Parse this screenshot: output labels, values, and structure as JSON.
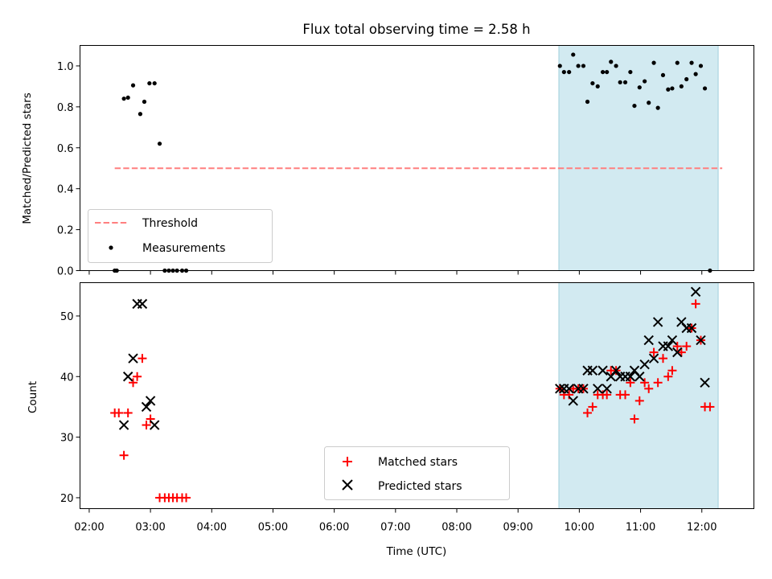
{
  "figure": {
    "title": "Flux total observing time = 2.58 h",
    "xlabel": "Time (UTC)"
  },
  "chart_data": [
    {
      "type": "scatter",
      "title": "Flux total observing time = 2.58 h",
      "xlabel": "",
      "ylabel": "Matched/Predicted stars",
      "xlim": [
        "01:51",
        "12:51"
      ],
      "ylim": [
        0,
        1.1
      ],
      "xticks": [
        "02:00",
        "03:00",
        "04:00",
        "05:00",
        "06:00",
        "07:00",
        "08:00",
        "09:00",
        "10:00",
        "11:00",
        "12:00"
      ],
      "yticks": [
        "0.0",
        "0.2",
        "0.4",
        "0.6",
        "0.8",
        "1.0"
      ],
      "shaded_interval": {
        "start": "09:40",
        "end": "12:16",
        "color": "#add8e6"
      },
      "threshold": {
        "name": "Threshold",
        "value": 0.5,
        "x_start": "02:25",
        "x_end": "12:20",
        "color": "#ff7f7f",
        "style": "dashed"
      },
      "series": [
        {
          "name": "Measurements",
          "marker": "dot",
          "color": "#000000",
          "points": [
            [
              "02:25",
              0.0
            ],
            [
              "02:27",
              0.0
            ],
            [
              "02:34",
              0.84
            ],
            [
              "02:38",
              0.845
            ],
            [
              "02:43",
              0.905
            ],
            [
              "02:50",
              0.765
            ],
            [
              "02:54",
              0.825
            ],
            [
              "02:59",
              0.915
            ],
            [
              "03:04",
              0.915
            ],
            [
              "03:09",
              0.62
            ],
            [
              "03:14",
              0.0
            ],
            [
              "03:18",
              0.0
            ],
            [
              "03:22",
              0.0
            ],
            [
              "03:26",
              0.0
            ],
            [
              "03:31",
              0.0
            ],
            [
              "03:35",
              0.0
            ],
            [
              "09:41",
              1.0
            ],
            [
              "09:45",
              0.97
            ],
            [
              "09:50",
              0.97
            ],
            [
              "09:54",
              1.055
            ],
            [
              "09:59",
              1.0
            ],
            [
              "10:04",
              1.0
            ],
            [
              "10:08",
              0.825
            ],
            [
              "10:13",
              0.915
            ],
            [
              "10:18",
              0.9
            ],
            [
              "10:23",
              0.97
            ],
            [
              "10:27",
              0.97
            ],
            [
              "10:31",
              1.02
            ],
            [
              "10:36",
              1.0
            ],
            [
              "10:40",
              0.92
            ],
            [
              "10:45",
              0.92
            ],
            [
              "10:50",
              0.97
            ],
            [
              "10:54",
              0.805
            ],
            [
              "10:59",
              0.895
            ],
            [
              "11:04",
              0.925
            ],
            [
              "11:08",
              0.82
            ],
            [
              "11:13",
              1.015
            ],
            [
              "11:17",
              0.795
            ],
            [
              "11:22",
              0.955
            ],
            [
              "11:27",
              0.885
            ],
            [
              "11:31",
              0.89
            ],
            [
              "11:36",
              1.015
            ],
            [
              "11:40",
              0.9
            ],
            [
              "11:45",
              0.935
            ],
            [
              "11:50",
              1.015
            ],
            [
              "11:54",
              0.96
            ],
            [
              "11:59",
              1.0
            ],
            [
              "12:03",
              0.89
            ],
            [
              "12:08",
              0.0
            ]
          ]
        }
      ],
      "legend": {
        "position": "lower-left",
        "entries": [
          "Threshold",
          "Measurements"
        ]
      }
    },
    {
      "type": "scatter",
      "title": "",
      "xlabel": "Time (UTC)",
      "ylabel": "Count",
      "xlim": [
        "01:51",
        "12:51"
      ],
      "ylim": [
        18.2,
        55.5
      ],
      "xticks": [
        "02:00",
        "03:00",
        "04:00",
        "05:00",
        "06:00",
        "07:00",
        "08:00",
        "09:00",
        "10:00",
        "11:00",
        "12:00"
      ],
      "yticks": [
        "20",
        "30",
        "40",
        "50"
      ],
      "shaded_interval": {
        "start": "09:40",
        "end": "12:16",
        "color": "#add8e6"
      },
      "series": [
        {
          "name": "Matched stars",
          "marker": "plus",
          "color": "#ff0000",
          "points": [
            [
              "02:25",
              34
            ],
            [
              "02:29",
              34
            ],
            [
              "02:34",
              27
            ],
            [
              "02:38",
              34
            ],
            [
              "02:43",
              39
            ],
            [
              "02:47",
              40
            ],
            [
              "02:52",
              43
            ],
            [
              "02:56",
              32
            ],
            [
              "03:00",
              33
            ],
            [
              "03:09",
              20
            ],
            [
              "03:14",
              20
            ],
            [
              "03:18",
              20
            ],
            [
              "03:22",
              20
            ],
            [
              "03:26",
              20
            ],
            [
              "03:31",
              20
            ],
            [
              "03:35",
              20
            ],
            [
              "09:41",
              38
            ],
            [
              "09:45",
              37
            ],
            [
              "09:50",
              37
            ],
            [
              "09:54",
              38
            ],
            [
              "09:59",
              38
            ],
            [
              "10:04",
              38
            ],
            [
              "10:08",
              34
            ],
            [
              "10:13",
              35
            ],
            [
              "10:18",
              37
            ],
            [
              "10:23",
              37
            ],
            [
              "10:27",
              37
            ],
            [
              "10:31",
              41
            ],
            [
              "10:36",
              41
            ],
            [
              "10:40",
              37
            ],
            [
              "10:45",
              37
            ],
            [
              "10:50",
              39
            ],
            [
              "10:54",
              33
            ],
            [
              "10:59",
              36
            ],
            [
              "11:04",
              39
            ],
            [
              "11:08",
              38
            ],
            [
              "11:13",
              44
            ],
            [
              "11:17",
              39
            ],
            [
              "11:22",
              43
            ],
            [
              "11:27",
              40
            ],
            [
              "11:31",
              41
            ],
            [
              "11:36",
              45
            ],
            [
              "11:40",
              44
            ],
            [
              "11:45",
              45
            ],
            [
              "11:50",
              48
            ],
            [
              "11:54",
              52
            ],
            [
              "11:59",
              46
            ],
            [
              "12:03",
              35
            ],
            [
              "12:08",
              35
            ]
          ]
        },
        {
          "name": "Predicted stars",
          "marker": "x",
          "color": "#000000",
          "points": [
            [
              "02:34",
              32
            ],
            [
              "02:38",
              40
            ],
            [
              "02:43",
              43
            ],
            [
              "02:47",
              52
            ],
            [
              "02:52",
              52
            ],
            [
              "02:56",
              35
            ],
            [
              "03:00",
              36
            ],
            [
              "03:04",
              32
            ],
            [
              "09:41",
              38
            ],
            [
              "09:45",
              38
            ],
            [
              "09:50",
              38
            ],
            [
              "09:54",
              36
            ],
            [
              "09:59",
              38
            ],
            [
              "10:04",
              38
            ],
            [
              "10:08",
              41
            ],
            [
              "10:13",
              41
            ],
            [
              "10:18",
              38
            ],
            [
              "10:23",
              41
            ],
            [
              "10:27",
              38
            ],
            [
              "10:31",
              40
            ],
            [
              "10:36",
              41
            ],
            [
              "10:40",
              40
            ],
            [
              "10:45",
              40
            ],
            [
              "10:50",
              40
            ],
            [
              "10:54",
              41
            ],
            [
              "10:59",
              40
            ],
            [
              "11:04",
              42
            ],
            [
              "11:08",
              46
            ],
            [
              "11:13",
              43
            ],
            [
              "11:17",
              49
            ],
            [
              "11:22",
              45
            ],
            [
              "11:27",
              45
            ],
            [
              "11:31",
              46
            ],
            [
              "11:36",
              44
            ],
            [
              "11:40",
              49
            ],
            [
              "11:45",
              48
            ],
            [
              "11:50",
              48
            ],
            [
              "11:54",
              54
            ],
            [
              "11:59",
              46
            ],
            [
              "12:03",
              39
            ]
          ]
        }
      ],
      "legend": {
        "position": "lower-center",
        "entries": [
          "Matched stars",
          "Predicted stars"
        ]
      }
    }
  ]
}
